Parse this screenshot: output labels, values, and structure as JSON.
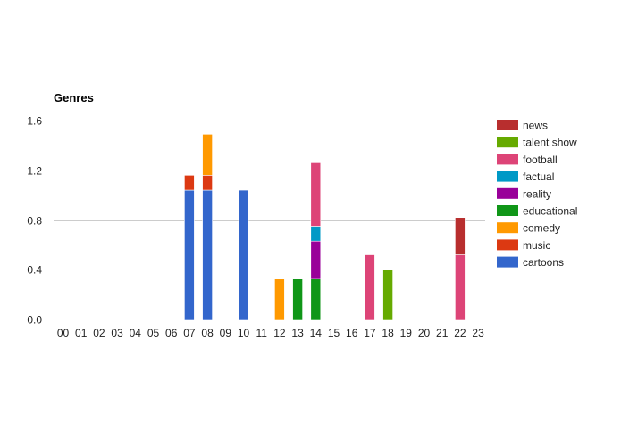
{
  "chart_data": {
    "type": "bar",
    "stacked": true,
    "title": "Genres",
    "xlabel": "",
    "ylabel": "",
    "ylim": [
      0,
      1.6
    ],
    "yticks": [
      "0.0",
      "0.4",
      "0.8",
      "1.2",
      "1.6"
    ],
    "ytick_values": [
      0,
      0.4,
      0.8,
      1.2,
      1.6
    ],
    "grid": true,
    "legend_position": "right",
    "categories": [
      "00",
      "01",
      "02",
      "03",
      "04",
      "05",
      "06",
      "07",
      "08",
      "09",
      "10",
      "11",
      "12",
      "13",
      "14",
      "15",
      "16",
      "17",
      "18",
      "19",
      "20",
      "21",
      "22",
      "23"
    ],
    "series": [
      {
        "name": "cartoons",
        "color": "#3366cc",
        "values": [
          0,
          0,
          0,
          0,
          0,
          0,
          0,
          1.04,
          1.04,
          0,
          1.04,
          0,
          0,
          0,
          0,
          0,
          0,
          0,
          0,
          0,
          0,
          0,
          0,
          0
        ]
      },
      {
        "name": "music",
        "color": "#dc3912",
        "values": [
          0,
          0,
          0,
          0,
          0,
          0,
          0,
          0.12,
          0.12,
          0,
          0,
          0,
          0,
          0,
          0,
          0,
          0,
          0,
          0,
          0,
          0,
          0,
          0,
          0
        ]
      },
      {
        "name": "comedy",
        "color": "#ff9900",
        "values": [
          0,
          0,
          0,
          0,
          0,
          0,
          0,
          0,
          0.33,
          0,
          0,
          0,
          0.33,
          0,
          0,
          0,
          0,
          0,
          0,
          0,
          0,
          0,
          0,
          0
        ]
      },
      {
        "name": "educational",
        "color": "#109618",
        "values": [
          0,
          0,
          0,
          0,
          0,
          0,
          0,
          0,
          0,
          0,
          0,
          0,
          0,
          0.33,
          0.33,
          0,
          0,
          0,
          0,
          0,
          0,
          0,
          0,
          0
        ]
      },
      {
        "name": "reality",
        "color": "#990099",
        "values": [
          0,
          0,
          0,
          0,
          0,
          0,
          0,
          0,
          0,
          0,
          0,
          0,
          0,
          0,
          0.3,
          0,
          0,
          0,
          0,
          0,
          0,
          0,
          0,
          0
        ]
      },
      {
        "name": "factual",
        "color": "#0099c6",
        "values": [
          0,
          0,
          0,
          0,
          0,
          0,
          0,
          0,
          0,
          0,
          0,
          0,
          0,
          0,
          0.12,
          0,
          0,
          0,
          0,
          0,
          0,
          0,
          0,
          0
        ]
      },
      {
        "name": "football",
        "color": "#dd4477",
        "values": [
          0,
          0,
          0,
          0,
          0,
          0,
          0,
          0,
          0,
          0,
          0,
          0,
          0,
          0,
          0.51,
          0,
          0,
          0.52,
          0,
          0,
          0,
          0,
          0.52,
          0
        ]
      },
      {
        "name": "talent show",
        "color": "#66aa00",
        "values": [
          0,
          0,
          0,
          0,
          0,
          0,
          0,
          0,
          0,
          0,
          0,
          0,
          0,
          0,
          0,
          0,
          0,
          0,
          0.4,
          0,
          0,
          0,
          0,
          0
        ]
      },
      {
        "name": "news",
        "color": "#b82e2e",
        "values": [
          0,
          0,
          0,
          0,
          0,
          0,
          0,
          0,
          0,
          0,
          0,
          0,
          0,
          0,
          0,
          0,
          0,
          0,
          0,
          0,
          0,
          0,
          0.3,
          0
        ]
      }
    ]
  }
}
